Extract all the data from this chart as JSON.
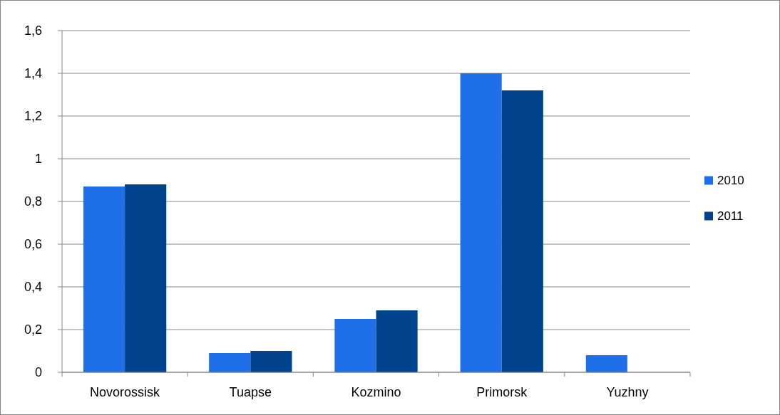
{
  "chart_data": {
    "type": "bar",
    "categories": [
      "Novorossisk",
      "Tuapse",
      "Kozmino",
      "Primorsk",
      "Yuzhny"
    ],
    "series": [
      {
        "name": "2010",
        "color": "#1f6fe8",
        "values": [
          0.87,
          0.09,
          0.25,
          1.4,
          0.08
        ]
      },
      {
        "name": "2011",
        "color": "#00438d",
        "values": [
          0.88,
          0.1,
          0.29,
          1.32,
          null
        ]
      }
    ],
    "ylim": [
      0,
      1.6
    ],
    "yticks": [
      0,
      {
        "value": 0.2,
        "label": "0,2"
      },
      {
        "value": 0.4,
        "label": "0,4"
      },
      {
        "value": 0.6,
        "label": "0,6"
      },
      {
        "value": 0.8,
        "label": "0,8"
      },
      1,
      {
        "value": 1.2,
        "label": "1,2"
      },
      {
        "value": 1.4,
        "label": "1,4"
      },
      {
        "value": 1.6,
        "label": "1,6"
      }
    ],
    "grid": "y",
    "legend": "right"
  }
}
